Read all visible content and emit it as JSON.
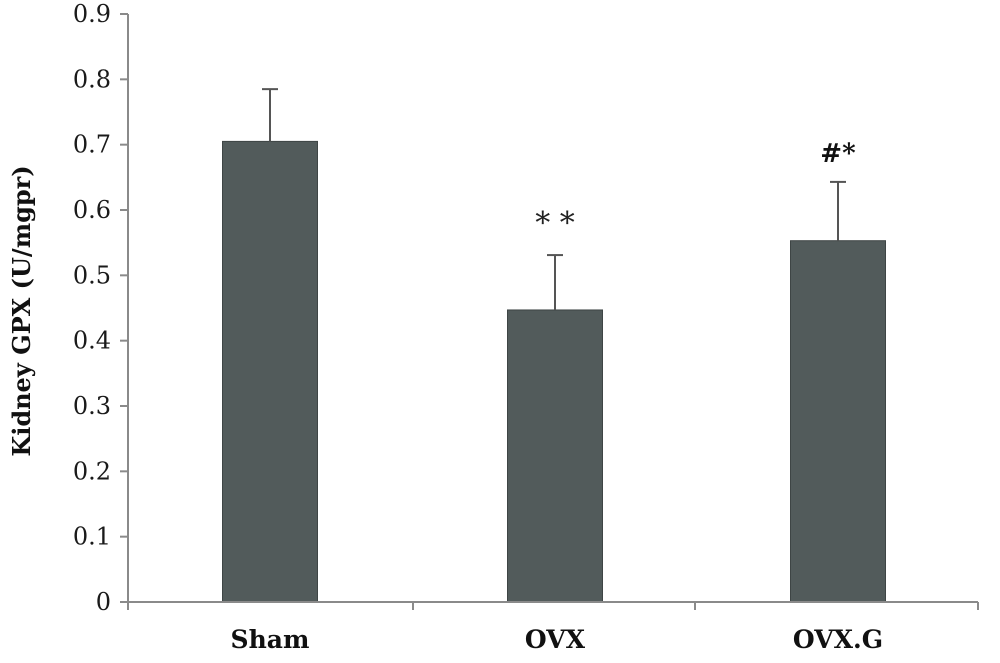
{
  "chart_data": {
    "type": "bar",
    "categories": [
      "Sham",
      "OVX",
      "OVX.G"
    ],
    "values": [
      0.705,
      0.447,
      0.553
    ],
    "error_plus": [
      0.08,
      0.084,
      0.09
    ],
    "annotations": [
      "",
      "* *",
      "#*"
    ],
    "title": "",
    "xlabel": "",
    "ylabel": "Kidney GPX (U/mgpr)",
    "ylim": [
      0,
      0.9
    ],
    "yticks": [
      "0",
      "0.1",
      "0.2",
      "0.3",
      "0.4",
      "0.5",
      "0.6",
      "0.7",
      "0.8",
      "0.9"
    ],
    "grid": false,
    "bar_color": "#525b5b"
  }
}
